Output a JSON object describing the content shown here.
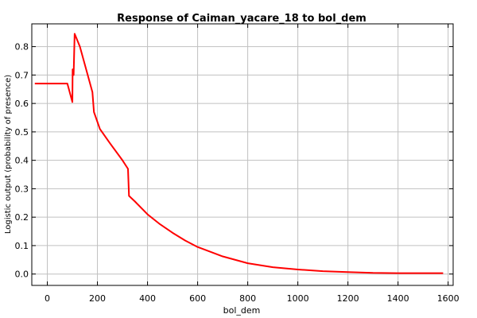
{
  "chart_data": {
    "type": "line",
    "title": "Response of Caiman_yacare_18 to bol_dem",
    "xlabel": "bol_dem",
    "ylabel": "Logistic output (probability of presence)",
    "xlim": [
      -62,
      1620
    ],
    "ylim": [
      -0.04,
      0.88
    ],
    "x_ticks": [
      0,
      200,
      400,
      600,
      800,
      1000,
      1200,
      1400,
      1600
    ],
    "y_ticks": [
      0.0,
      0.1,
      0.2,
      0.3,
      0.4,
      0.5,
      0.6,
      0.7,
      0.8
    ],
    "y_tick_labels": [
      "0.0",
      "0.1",
      "0.2",
      "0.3",
      "0.4",
      "0.5",
      "0.6",
      "0.7",
      "0.8"
    ],
    "grid": true,
    "legend": "none",
    "series": [
      {
        "color": "#ff0000",
        "points": [
          [
            -50,
            0.67
          ],
          [
            80,
            0.67
          ],
          [
            100,
            0.605
          ],
          [
            101,
            0.72
          ],
          [
            104,
            0.72
          ],
          [
            105,
            0.7
          ],
          [
            109,
            0.845
          ],
          [
            130,
            0.8
          ],
          [
            180,
            0.64
          ],
          [
            186,
            0.57
          ],
          [
            210,
            0.51
          ],
          [
            250,
            0.46
          ],
          [
            300,
            0.4
          ],
          [
            322,
            0.37
          ],
          [
            326,
            0.275
          ],
          [
            350,
            0.255
          ],
          [
            400,
            0.21
          ],
          [
            450,
            0.175
          ],
          [
            500,
            0.145
          ],
          [
            550,
            0.118
          ],
          [
            600,
            0.095
          ],
          [
            700,
            0.062
          ],
          [
            800,
            0.038
          ],
          [
            900,
            0.024
          ],
          [
            1000,
            0.016
          ],
          [
            1100,
            0.01
          ],
          [
            1200,
            0.007
          ],
          [
            1300,
            0.004
          ],
          [
            1400,
            0.003
          ],
          [
            1580,
            0.003
          ]
        ]
      }
    ]
  }
}
